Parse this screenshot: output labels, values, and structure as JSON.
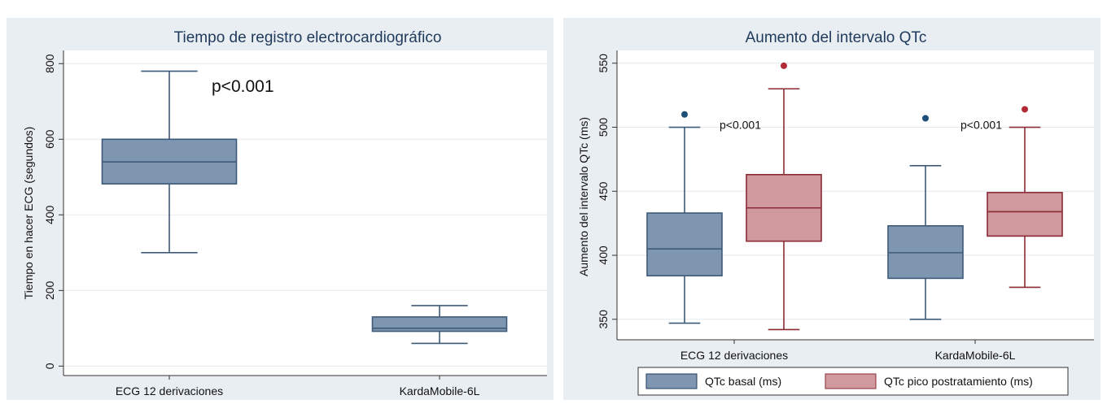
{
  "chart_data": [
    {
      "type": "boxplot",
      "title": "Tiempo de registro electrocardiográfico",
      "xlabel": "",
      "ylabel": "Tiempo en hacer ECG (segundos)",
      "ylim": [
        -25,
        835
      ],
      "yticks": [
        0,
        200,
        400,
        600,
        800
      ],
      "categories": [
        "ECG 12 derivaciones",
        "KardaMobile-6L"
      ],
      "boxes": [
        {
          "category": "ECG 12 derivaciones",
          "min": 300,
          "q1": 482,
          "median": 540,
          "q3": 600,
          "max": 780,
          "color": "#7f96b0"
        },
        {
          "category": "KardaMobile-6L",
          "min": 60,
          "q1": 92,
          "median": 100,
          "q3": 130,
          "max": 160,
          "color": "#7f96b0"
        }
      ],
      "annotations": [
        {
          "text": "p<0.001",
          "x": "ECG 12 derivaciones",
          "y": 725
        }
      ],
      "grid": true
    },
    {
      "type": "boxplot",
      "title": "Aumento del intervalo QTc",
      "xlabel": "",
      "ylabel": "Aumento del intervalo QTc (ms)",
      "ylim": [
        334,
        560
      ],
      "yticks": [
        350,
        400,
        450,
        500,
        550
      ],
      "categories": [
        "ECG 12 derivaciones",
        "KardaMobile-6L"
      ],
      "series": [
        {
          "name": "QTc basal (ms)",
          "color": "#7f96b0",
          "outlier_color": "#1f4e79",
          "boxes": [
            {
              "min": 347,
              "q1": 384,
              "median": 405,
              "q3": 433,
              "max": 500,
              "outliers": [
                510
              ]
            },
            {
              "min": 350,
              "q1": 382,
              "median": 402,
              "q3": 423,
              "max": 470,
              "outliers": [
                507
              ]
            }
          ]
        },
        {
          "name": "QTc pico postratamiento (ms)",
          "color": "#d0999e",
          "outlier_color": "#b22a35",
          "boxes": [
            {
              "min": 342,
              "q1": 411,
              "median": 437,
              "q3": 463,
              "max": 530,
              "outliers": [
                548
              ]
            },
            {
              "min": 375,
              "q1": 415,
              "median": 434,
              "q3": 449,
              "max": 500,
              "outliers": [
                514
              ]
            }
          ]
        }
      ],
      "annotations": [
        {
          "text": "p<0.001",
          "x": "ECG 12 derivaciones",
          "y": 502
        },
        {
          "text": "p<0.001",
          "x": "KardaMobile-6L",
          "y": 502
        }
      ],
      "legend": {
        "position": "bottom",
        "items": [
          "QTc basal (ms)",
          "QTc pico postratamiento (ms)"
        ]
      },
      "grid": true
    }
  ]
}
